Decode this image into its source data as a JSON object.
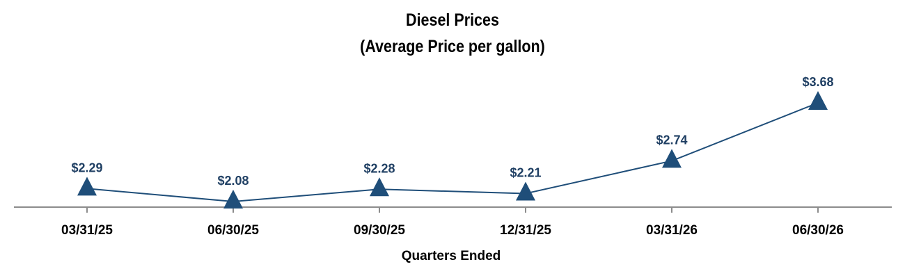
{
  "chart_data": {
    "type": "line",
    "title": "Diesel Prices",
    "subtitle": "(Average Price per gallon)",
    "xlabel": "Quarters Ended",
    "ylabel": "",
    "categories": [
      "03/31/25",
      "06/30/25",
      "09/30/25",
      "12/31/25",
      "03/31/26",
      "06/30/26"
    ],
    "values": [
      2.29,
      2.08,
      2.28,
      2.21,
      2.74,
      3.68
    ],
    "value_labels": [
      "$2.29",
      "$2.08",
      "$2.28",
      "$2.21",
      "$2.74",
      "$3.68"
    ],
    "marker": "triangle",
    "grid": false,
    "legend": "none",
    "colors": {
      "series": "#1f4e79",
      "axis": "#8c8c8c",
      "label": "#1f3f63"
    }
  }
}
